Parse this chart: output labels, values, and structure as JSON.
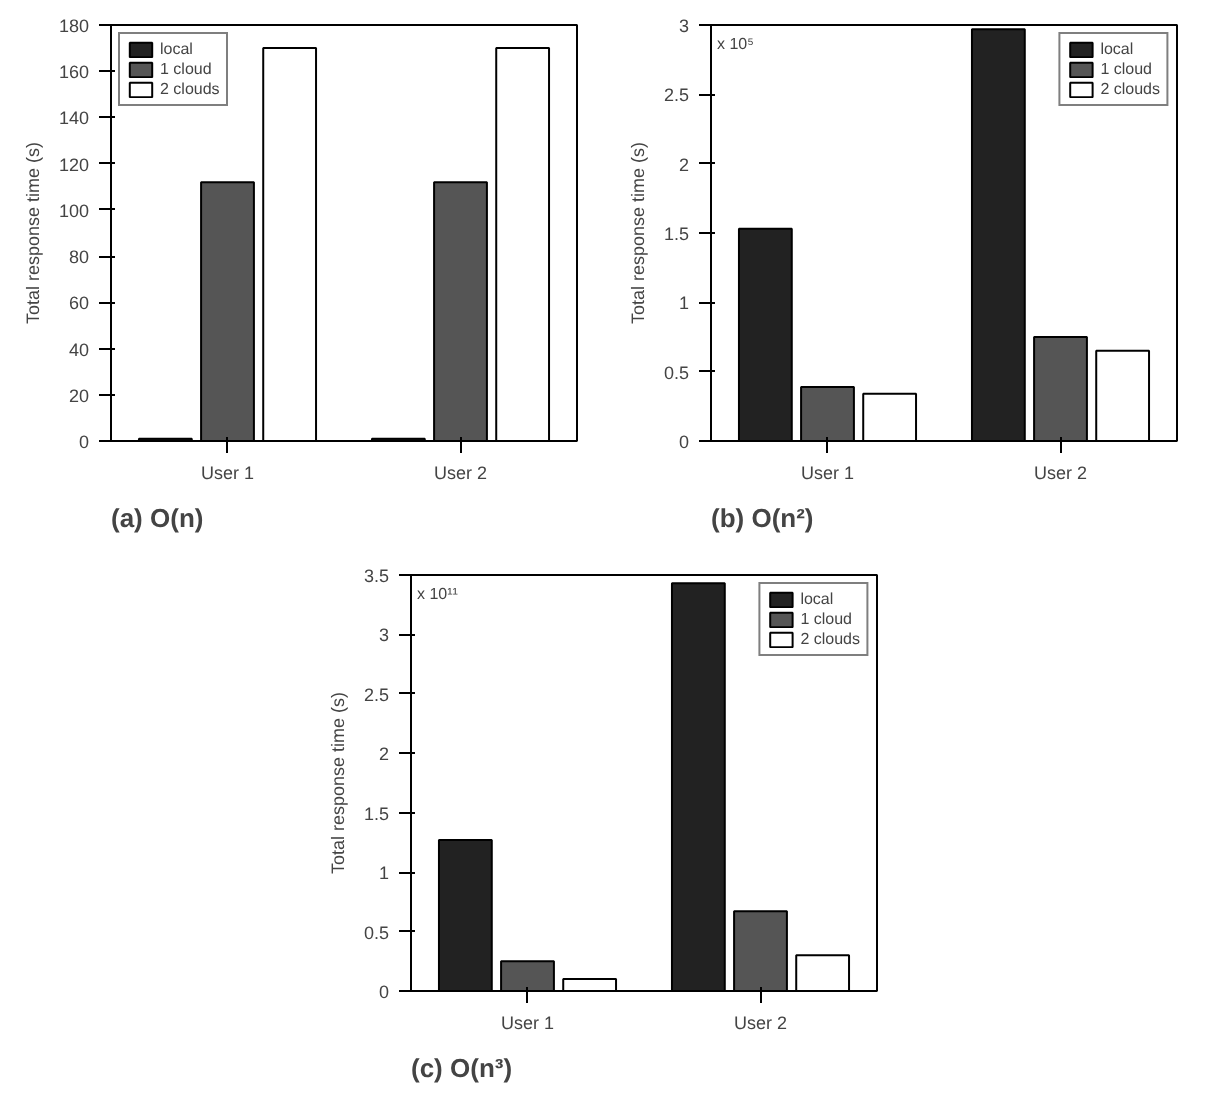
{
  "chart_data": [
    {
      "type": "bar",
      "title": "(a) O(n)",
      "ylabel": "Total response time (s)",
      "categories": [
        "User 1",
        "User 2"
      ],
      "ylim": [
        0,
        180
      ],
      "yticks": [
        0,
        20,
        40,
        60,
        80,
        100,
        120,
        140,
        160,
        180
      ],
      "grid": false,
      "legend": "top left",
      "series": [
        {
          "name": "local",
          "color": "#222222",
          "values": [
            1,
            1
          ]
        },
        {
          "name": "1 cloud",
          "color": "#555555",
          "values": [
            112,
            112
          ]
        },
        {
          "name": "2 clouds",
          "color": "#ffffff",
          "values": [
            170,
            170
          ]
        }
      ]
    },
    {
      "type": "bar",
      "title": "(b) O(n²)",
      "ylabel": "Total response time (s)",
      "annotations": [
        "x 10⁵"
      ],
      "categories": [
        "User 1",
        "User 2"
      ],
      "ylim": [
        0,
        3
      ],
      "yticks": [
        0,
        0.5,
        1,
        1.5,
        2,
        2.5,
        3
      ],
      "grid": false,
      "legend": "top right",
      "series": [
        {
          "name": "local",
          "color": "#222222",
          "values": [
            1.53,
            2.97
          ]
        },
        {
          "name": "1 cloud",
          "color": "#555555",
          "values": [
            0.39,
            0.75
          ]
        },
        {
          "name": "2 clouds",
          "color": "#ffffff",
          "values": [
            0.34,
            0.65
          ]
        }
      ]
    },
    {
      "type": "bar",
      "title": "(c) O(n³)",
      "ylabel": "Total response time (s)",
      "annotations": [
        "x 10¹¹"
      ],
      "categories": [
        "User 1",
        "User 2"
      ],
      "ylim": [
        0,
        3.5
      ],
      "yticks": [
        0,
        0.5,
        1,
        1.5,
        2,
        2.5,
        3,
        3.5
      ],
      "grid": false,
      "legend": "top right",
      "series": [
        {
          "name": "local",
          "color": "#222222",
          "values": [
            1.27,
            3.43
          ]
        },
        {
          "name": "1 cloud",
          "color": "#555555",
          "values": [
            0.25,
            0.67
          ]
        },
        {
          "name": "2 clouds",
          "color": "#ffffff",
          "values": [
            0.1,
            0.3
          ]
        }
      ]
    }
  ]
}
